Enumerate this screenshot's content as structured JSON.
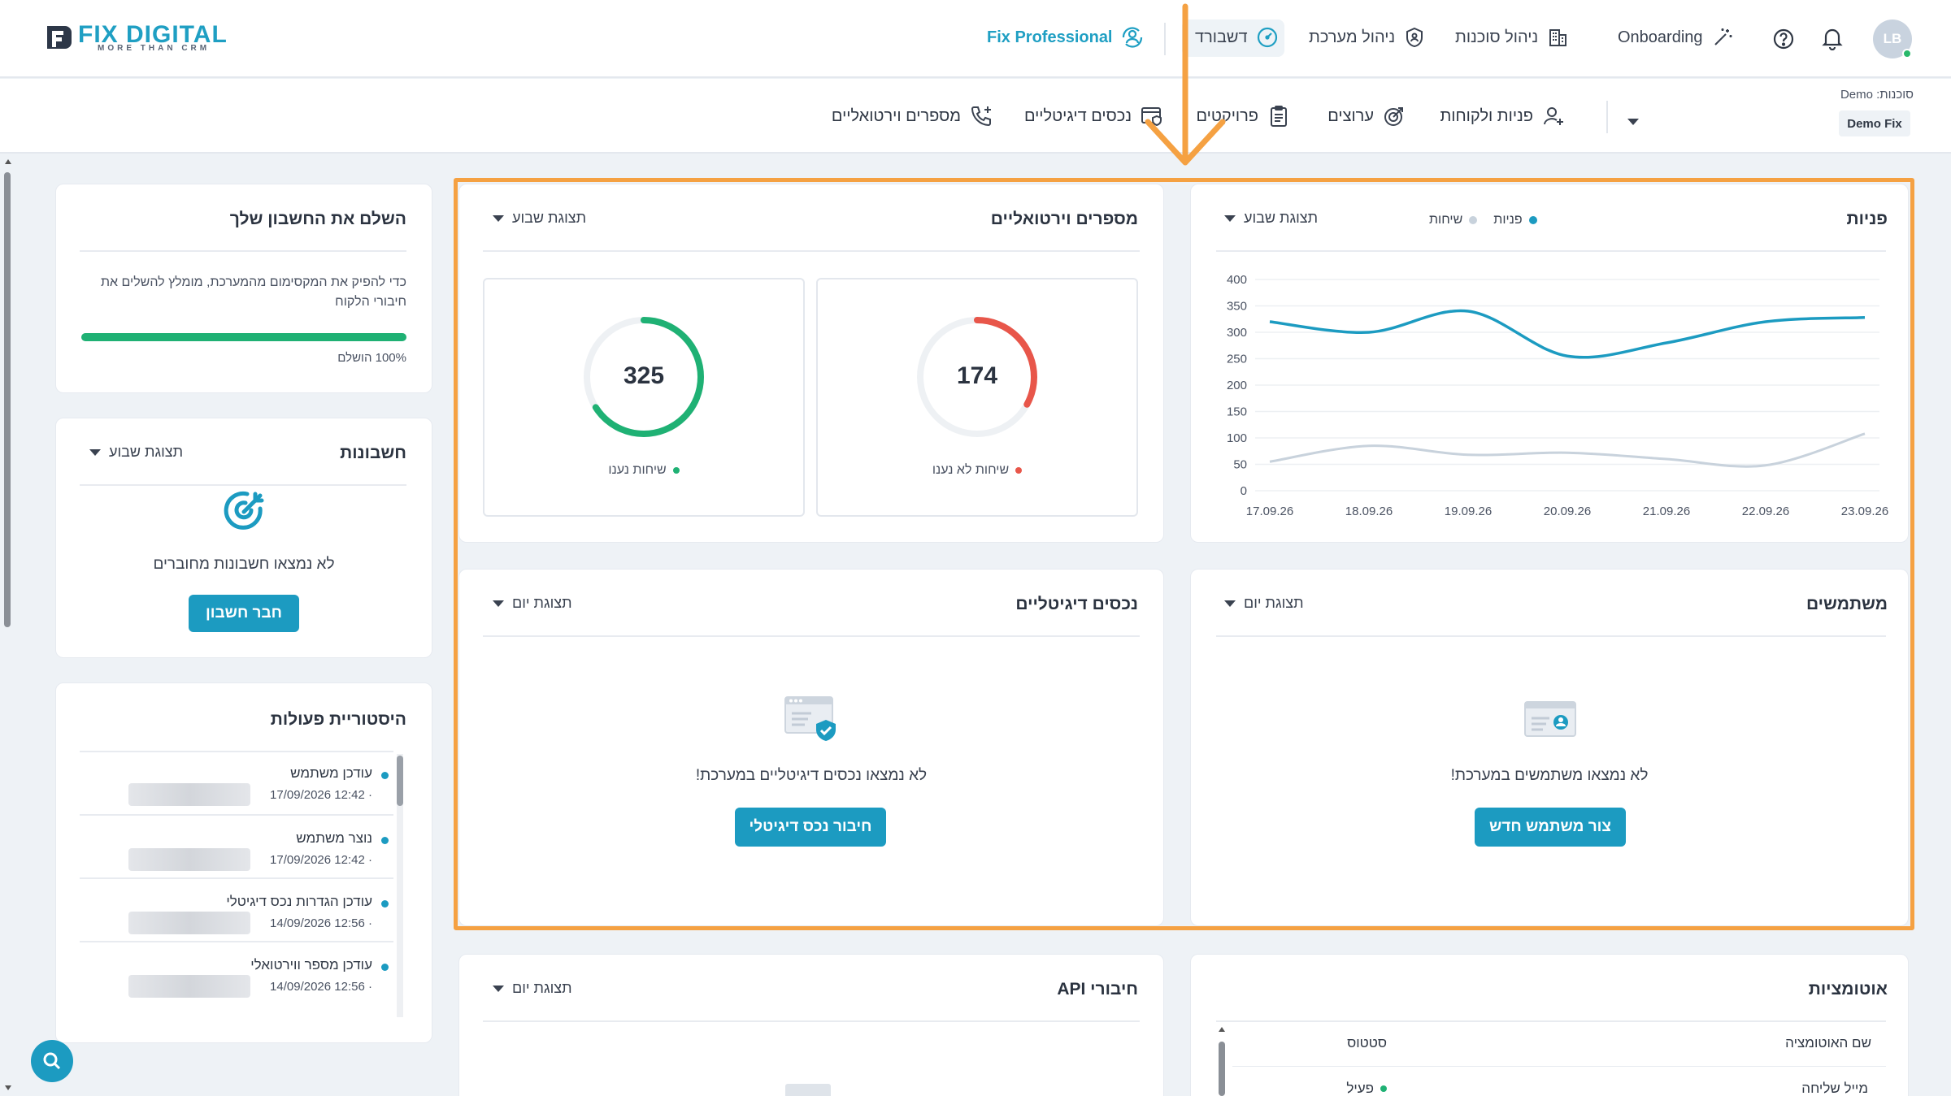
{
  "header": {
    "logo": {
      "name": "FIX",
      "name_accent": "DIGITAL",
      "tagline": "MORE THAN CRM"
    },
    "fix_professional": "Fix Professional",
    "dashboard": "דשבורד",
    "system_management": "ניהול מערכת",
    "agency_management": "ניהול סוכנות",
    "onboarding": "Onboarding",
    "avatar_initials": "LB",
    "agency_label": "סוכנות: Demo",
    "agency_value": "Demo Fix"
  },
  "nav": {
    "items": [
      {
        "label": "פניות ולקוחות",
        "icon": "user-plus-icon"
      },
      {
        "label": "ערוצים",
        "icon": "target-icon"
      },
      {
        "label": "פרויקטים",
        "icon": "clipboard-icon"
      },
      {
        "label": "נכסים דיגיטליים",
        "icon": "browser-shield-icon"
      },
      {
        "label": "מספרים וירטואליים",
        "icon": "phone-plus-icon"
      }
    ]
  },
  "leads_card": {
    "title": "פניות",
    "legend": [
      "פניות",
      "שיחות"
    ],
    "dropdown": "תצוגת שבוע"
  },
  "chart_data": {
    "type": "line",
    "x": [
      "17.09.26",
      "18.09.26",
      "19.09.26",
      "20.09.26",
      "21.09.26",
      "22.09.26",
      "23.09.26"
    ],
    "series": [
      {
        "name": "פניות",
        "color": "#1c9bc1",
        "values": [
          320,
          300,
          340,
          255,
          280,
          320,
          328
        ]
      },
      {
        "name": "שיחות",
        "color": "#c8d2dc",
        "values": [
          55,
          85,
          68,
          72,
          60,
          48,
          108
        ]
      }
    ],
    "ylim": [
      0,
      400
    ],
    "yticks": [
      0,
      50,
      100,
      150,
      200,
      250,
      300,
      350,
      400
    ],
    "grid": true
  },
  "virtual_numbers_card": {
    "title": "מספרים וירטואליים",
    "dropdown": "תצוגת שבוע",
    "stats": [
      {
        "value": "174",
        "label": "שיחות לא נענו",
        "color": "#e8564a",
        "fraction": 0.33
      },
      {
        "value": "325",
        "label": "שיחות נענו",
        "color": "#1fb174",
        "fraction": 0.66
      }
    ]
  },
  "users_card": {
    "title": "משתמשים",
    "dropdown": "תצוגת יום",
    "empty_text": "לא נמצאו משתמשים במערכת!",
    "button": "צור משתמש חדש"
  },
  "assets_card": {
    "title": "נכסים דיגיטליים",
    "dropdown": "תצוגת יום",
    "empty_text": "לא נמצאו נכסים דיגיטליים במערכת!",
    "button": "חיבור נכס דיגיטלי"
  },
  "automations_card": {
    "title": "אוטומציות",
    "columns": [
      "שם האוטומציה",
      "סטטוס"
    ],
    "rows": [
      {
        "name": "מייל שליחה",
        "status": "פעיל"
      }
    ]
  },
  "api_card": {
    "title": "חיבורי API",
    "dropdown": "תצוגת יום"
  },
  "complete_account": {
    "title": "השלם את החשבון שלך",
    "text": "כדי להפיק את המקסימום מהמערכת, מומלץ להשלים את חיבורי הלקוח",
    "progress": 1.0,
    "progress_label": "100% הושלם"
  },
  "accounts_card": {
    "title": "חשבונות",
    "dropdown": "תצוגת שבוע",
    "empty_text": "לא נמצאו חשבונות מחוברים",
    "button": "חבר חשבון"
  },
  "history_card": {
    "title": "היסטוריית פעולות",
    "items": [
      {
        "title": "עודכן משתמש",
        "date": "17/09/2026 12:42"
      },
      {
        "title": "נוצר משתמש",
        "date": "17/09/2026 12:42"
      },
      {
        "title": "עודכן הגדרות נכס דיגיטלי",
        "date": "14/09/2026 12:56"
      },
      {
        "title": "עודכן מספר ווירטואלי",
        "date": "14/09/2026 12:56"
      }
    ]
  }
}
